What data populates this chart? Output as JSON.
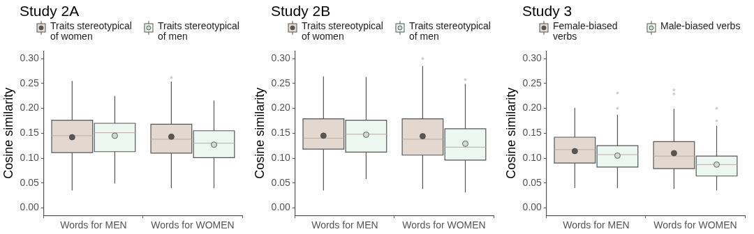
{
  "chart_data": [
    {
      "type": "box",
      "title": "Study 2A",
      "ylabel": "Cosine similarity",
      "categories": [
        "Words for MEN",
        "Words for WOMEN"
      ],
      "ylim": [
        -0.015,
        0.315
      ],
      "yticks": [
        {
          "value": 0,
          "label": "0.00"
        },
        {
          "value": 0.05,
          "label": "0.05"
        },
        {
          "value": 0.1,
          "label": "0.10"
        },
        {
          "value": 0.15,
          "label": "0.15"
        },
        {
          "value": 0.2,
          "label": "0.20"
        },
        {
          "value": 0.25,
          "label": "0.25"
        },
        {
          "value": 0.3,
          "label": "0.30"
        }
      ],
      "grid": false,
      "legend": "top",
      "marker": "circle",
      "series": [
        {
          "name": "Traits stereotypical of women",
          "color": "#e2d8cf",
          "boxes": [
            {
              "low": 0.035,
              "q1": 0.111,
              "median": 0.145,
              "q3": 0.176,
              "high": 0.255,
              "mean": 0.142
            },
            {
              "low": 0.04,
              "q1": 0.11,
              "median": 0.138,
              "q3": 0.168,
              "high": 0.254,
              "mean": 0.143,
              "outliers": [
                0.262
              ]
            }
          ]
        },
        {
          "name": "Traits stereotypical of men",
          "color": "#edf7f1",
          "boxes": [
            {
              "low": 0.049,
              "q1": 0.113,
              "median": 0.151,
              "q3": 0.17,
              "high": 0.225,
              "mean": 0.145
            },
            {
              "low": 0.04,
              "q1": 0.101,
              "median": 0.13,
              "q3": 0.155,
              "high": 0.216,
              "mean": 0.127
            }
          ]
        }
      ]
    },
    {
      "type": "box",
      "title": "Study 2B",
      "ylabel": "Cosine similarity",
      "categories": [
        "Words for MEN",
        "Words for WOMEN"
      ],
      "ylim": [
        -0.015,
        0.315
      ],
      "yticks": [
        {
          "value": 0,
          "label": "0.00"
        },
        {
          "value": 0.05,
          "label": "0.05"
        },
        {
          "value": 0.1,
          "label": "0.10"
        },
        {
          "value": 0.15,
          "label": "0.15"
        },
        {
          "value": 0.2,
          "label": "0.20"
        },
        {
          "value": 0.25,
          "label": "0.25"
        },
        {
          "value": 0.3,
          "label": "0.30"
        }
      ],
      "grid": false,
      "legend": "top",
      "marker": "circle",
      "series": [
        {
          "name": "Traits stereotypical of women",
          "color": "#e2d8cf",
          "boxes": [
            {
              "low": 0.035,
              "q1": 0.118,
              "median": 0.14,
              "q3": 0.179,
              "high": 0.264,
              "mean": 0.145
            },
            {
              "low": 0.038,
              "q1": 0.106,
              "median": 0.138,
              "q3": 0.179,
              "high": 0.285,
              "mean": 0.144,
              "outliers": [
                0.3
              ]
            }
          ]
        },
        {
          "name": "Traits stereotypical of men",
          "color": "#edf7f1",
          "boxes": [
            {
              "low": 0.058,
              "q1": 0.112,
              "median": 0.148,
              "q3": 0.176,
              "high": 0.263,
              "mean": 0.147
            },
            {
              "low": 0.031,
              "q1": 0.096,
              "median": 0.122,
              "q3": 0.159,
              "high": 0.249,
              "mean": 0.129,
              "outliers": [
                0.258
              ]
            }
          ]
        }
      ]
    },
    {
      "type": "box",
      "title": "Study 3",
      "ylabel": "Cosine similarity",
      "categories": [
        "Words for MEN",
        "Words for WOMEN"
      ],
      "ylim": [
        -0.015,
        0.315
      ],
      "yticks": [
        {
          "value": 0,
          "label": "0.00"
        },
        {
          "value": 0.05,
          "label": "0.05"
        },
        {
          "value": 0.1,
          "label": "0.10"
        },
        {
          "value": 0.15,
          "label": "0.15"
        },
        {
          "value": 0.2,
          "label": "0.20"
        },
        {
          "value": 0.25,
          "label": "0.25"
        },
        {
          "value": 0.3,
          "label": "0.30"
        }
      ],
      "grid": false,
      "legend": "top",
      "marker": "circle",
      "series": [
        {
          "name": "Female-biased verbs",
          "color": "#e2d8cf",
          "boxes": [
            {
              "low": 0.04,
              "q1": 0.09,
              "median": 0.117,
              "q3": 0.142,
              "high": 0.201,
              "mean": 0.114
            },
            {
              "low": 0.038,
              "q1": 0.079,
              "median": 0.104,
              "q3": 0.133,
              "high": 0.199,
              "mean": 0.11,
              "outliers": [
                0.229,
                0.237
              ]
            }
          ]
        },
        {
          "name": "Male-biased verbs",
          "color": "#edf7f1",
          "boxes": [
            {
              "low": 0.04,
              "q1": 0.082,
              "median": 0.107,
              "q3": 0.125,
              "high": 0.187,
              "mean": 0.105,
              "outliers": [
                0.2,
                0.231
              ]
            },
            {
              "low": 0.035,
              "q1": 0.064,
              "median": 0.087,
              "q3": 0.104,
              "high": 0.165,
              "mean": 0.087,
              "outliers": [
                0.175,
                0.2
              ]
            }
          ]
        }
      ]
    }
  ]
}
